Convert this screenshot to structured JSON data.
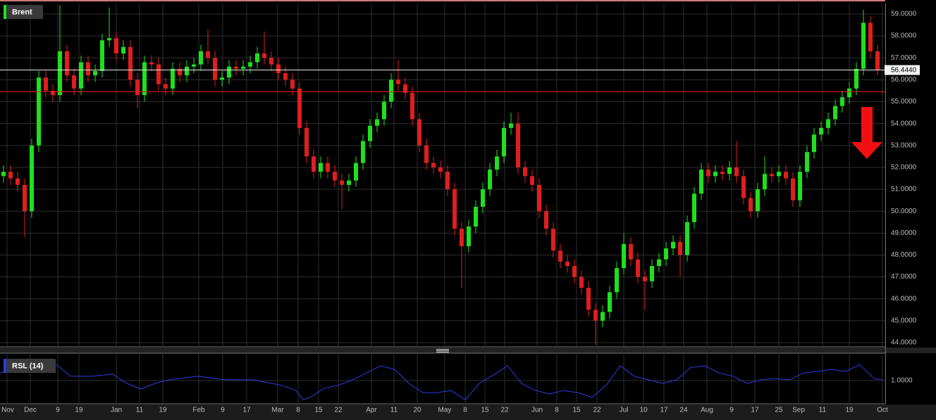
{
  "chart_data": [
    {
      "type": "candlestick",
      "title": "Brent",
      "up_color": "#1ee01e",
      "down_color": "#e01e1e",
      "open": [
        51.6,
        51.8,
        51.5,
        51.2,
        50.0,
        53.0,
        56.1,
        55.5,
        55.3,
        57.3,
        56.2,
        55.6,
        56.8,
        56.2,
        56.4,
        57.8,
        57.9,
        57.2,
        57.5,
        56.0,
        55.3,
        56.8,
        56.7,
        55.8,
        55.6,
        56.5,
        56.2,
        56.6,
        56.7,
        57.3,
        57.0,
        56.0,
        56.1,
        56.6,
        56.5,
        56.6,
        56.8,
        57.2,
        57.0,
        56.7,
        56.3,
        56.0,
        55.6,
        53.8,
        52.5,
        51.8,
        52.2,
        51.8,
        51.4,
        51.2,
        51.4,
        52.2,
        53.2,
        53.9,
        54.2,
        55.0,
        56.0,
        55.8,
        55.4,
        54.2,
        53.0,
        52.2,
        52.0,
        51.8,
        51.0,
        49.2,
        48.4,
        49.3,
        50.2,
        51.0,
        51.9,
        52.5,
        53.8,
        54.0,
        52.0,
        51.6,
        51.2,
        50.0,
        49.2,
        48.2,
        47.7,
        47.5,
        47.0,
        46.5,
        45.5,
        45.0,
        45.4,
        46.3,
        47.4,
        48.5,
        47.8,
        47.0,
        46.8,
        47.5,
        47.8,
        48.3,
        48.6,
        48.0,
        49.5,
        50.8,
        51.9,
        51.6,
        51.8,
        51.7,
        52.0,
        51.6,
        50.6,
        50.0,
        51.0,
        51.7,
        51.6,
        51.8,
        51.5,
        50.5,
        51.8,
        52.7,
        53.5,
        53.8,
        54.2,
        54.8,
        55.2,
        55.6,
        56.5,
        58.6,
        57.3
      ],
      "high": [
        52.1,
        52.1,
        51.8,
        51.5,
        53.3,
        56.4,
        56.4,
        55.8,
        59.4,
        57.6,
        56.5,
        57.1,
        57.1,
        56.7,
        58.1,
        59.3,
        58.2,
        57.8,
        57.8,
        56.3,
        57.1,
        57.1,
        57.0,
        56.1,
        56.8,
        56.8,
        56.9,
        57.0,
        57.6,
        58.3,
        57.3,
        56.4,
        56.9,
        56.9,
        56.9,
        57.1,
        57.5,
        58.2,
        57.3,
        57.0,
        56.6,
        56.3,
        55.9,
        54.1,
        52.8,
        52.5,
        52.5,
        52.1,
        51.7,
        51.7,
        52.5,
        53.5,
        54.2,
        54.5,
        55.3,
        56.3,
        56.9,
        56.1,
        55.7,
        54.5,
        53.3,
        52.5,
        52.3,
        52.1,
        51.3,
        49.5,
        49.6,
        50.5,
        51.3,
        52.2,
        52.8,
        54.1,
        54.5,
        54.5,
        52.3,
        51.9,
        51.5,
        50.3,
        49.5,
        48.5,
        48.0,
        47.8,
        47.3,
        46.8,
        45.8,
        45.7,
        46.6,
        47.7,
        49.0,
        48.8,
        48.1,
        47.3,
        47.8,
        48.1,
        48.6,
        48.9,
        48.9,
        49.8,
        51.1,
        52.2,
        52.2,
        52.1,
        52.1,
        52.3,
        53.2,
        51.9,
        50.9,
        51.3,
        52.5,
        52.0,
        52.1,
        52.1,
        51.8,
        52.1,
        53.0,
        53.8,
        54.1,
        54.5,
        55.1,
        55.5,
        55.9,
        56.8,
        59.2,
        58.9,
        57.6
      ],
      "low": [
        51.3,
        51.2,
        50.9,
        48.8,
        49.7,
        52.7,
        55.2,
        55.0,
        55.0,
        55.9,
        55.3,
        55.3,
        55.9,
        55.9,
        56.1,
        57.5,
        56.9,
        56.9,
        55.7,
        54.7,
        55.0,
        56.4,
        55.5,
        55.3,
        55.3,
        55.9,
        55.9,
        56.3,
        56.4,
        56.7,
        55.7,
        55.7,
        55.8,
        56.2,
        56.2,
        56.3,
        56.5,
        56.7,
        56.4,
        56.0,
        55.7,
        55.3,
        53.5,
        52.2,
        51.5,
        51.5,
        51.5,
        51.1,
        50.1,
        50.9,
        51.1,
        51.9,
        52.9,
        53.6,
        53.9,
        54.7,
        55.5,
        55.1,
        53.9,
        52.7,
        51.9,
        51.7,
        51.5,
        50.7,
        48.9,
        46.5,
        48.1,
        49.0,
        49.9,
        50.7,
        51.6,
        52.2,
        53.5,
        51.7,
        51.3,
        50.9,
        49.7,
        48.9,
        47.9,
        47.4,
        47.2,
        46.7,
        46.2,
        45.2,
        43.9,
        44.7,
        45.1,
        46.0,
        47.1,
        47.5,
        46.7,
        45.5,
        46.5,
        47.2,
        47.5,
        48.0,
        47.0,
        47.7,
        49.2,
        50.5,
        51.3,
        51.3,
        51.4,
        51.4,
        51.3,
        50.3,
        49.7,
        49.7,
        50.7,
        51.3,
        51.3,
        51.2,
        50.2,
        50.2,
        51.5,
        52.4,
        53.2,
        53.5,
        53.9,
        54.5,
        54.9,
        55.3,
        56.2,
        57.0,
        56.2
      ],
      "close": [
        51.8,
        51.5,
        51.2,
        50.0,
        53.0,
        56.1,
        55.5,
        55.3,
        57.3,
        56.2,
        55.6,
        56.8,
        56.2,
        56.4,
        57.8,
        57.9,
        57.2,
        57.5,
        56.0,
        55.3,
        56.8,
        56.7,
        55.8,
        55.6,
        56.5,
        56.2,
        56.6,
        56.7,
        57.3,
        57.0,
        56.0,
        56.1,
        56.6,
        56.5,
        56.6,
        56.8,
        57.2,
        57.0,
        56.7,
        56.3,
        56.0,
        55.6,
        53.8,
        52.5,
        51.8,
        52.2,
        51.8,
        51.4,
        51.2,
        51.4,
        52.2,
        53.2,
        53.9,
        54.2,
        55.0,
        56.0,
        55.8,
        55.4,
        54.2,
        53.0,
        52.2,
        52.0,
        51.8,
        51.0,
        49.2,
        48.4,
        49.3,
        50.2,
        51.0,
        51.9,
        52.5,
        53.8,
        54.0,
        52.0,
        51.6,
        51.2,
        50.0,
        49.2,
        48.2,
        47.7,
        47.5,
        47.0,
        46.5,
        45.5,
        45.0,
        45.4,
        46.3,
        47.4,
        48.5,
        47.8,
        47.0,
        46.8,
        47.5,
        47.8,
        48.3,
        48.6,
        48.0,
        49.5,
        50.8,
        51.9,
        51.6,
        51.8,
        51.7,
        52.0,
        51.6,
        50.6,
        50.0,
        51.0,
        51.7,
        51.6,
        51.8,
        51.5,
        50.5,
        51.8,
        52.7,
        53.5,
        53.8,
        54.2,
        54.8,
        55.2,
        55.6,
        56.5,
        58.6,
        57.3,
        56.44
      ],
      "ylim": [
        43.84,
        59.48
      ],
      "yticks": [
        {
          "value": 44,
          "label": "44.0000"
        },
        {
          "value": 45,
          "label": "45.0000"
        },
        {
          "value": 46,
          "label": "46.0000"
        },
        {
          "value": 47,
          "label": "47.0000"
        },
        {
          "value": 48,
          "label": "48.0000"
        },
        {
          "value": 49,
          "label": "49.0000"
        },
        {
          "value": 50,
          "label": "50.0000"
        },
        {
          "value": 51,
          "label": "51.0000"
        },
        {
          "value": 52,
          "label": "52.0000"
        },
        {
          "value": 53,
          "label": "53.0000"
        },
        {
          "value": 54,
          "label": "54.0000"
        },
        {
          "value": 55,
          "label": "55.0000"
        },
        {
          "value": 56,
          "label": "56.0000"
        },
        {
          "value": 57,
          "label": "57.0000"
        },
        {
          "value": 58,
          "label": "58.0000"
        },
        {
          "value": 59,
          "label": "59.0000"
        }
      ],
      "xlim": [
        0,
        125.6
      ],
      "xticks": [
        {
          "value": 1.0,
          "label": "Nov"
        },
        {
          "value": 4.3,
          "label": "Dec"
        },
        {
          "value": 8.2,
          "label": "9"
        },
        {
          "value": 11.2,
          "label": "19"
        },
        {
          "value": 16.5,
          "label": "Jan"
        },
        {
          "value": 19.8,
          "label": "11"
        },
        {
          "value": 23.1,
          "label": "19"
        },
        {
          "value": 28.2,
          "label": "Feb"
        },
        {
          "value": 31.6,
          "label": "9"
        },
        {
          "value": 35.0,
          "label": "17"
        },
        {
          "value": 39.4,
          "label": "Mar"
        },
        {
          "value": 42.3,
          "label": "8"
        },
        {
          "value": 45.2,
          "label": "15"
        },
        {
          "value": 48.0,
          "label": "22"
        },
        {
          "value": 52.7,
          "label": "Apr"
        },
        {
          "value": 55.9,
          "label": "11"
        },
        {
          "value": 59.2,
          "label": "20"
        },
        {
          "value": 63.1,
          "label": "May"
        },
        {
          "value": 66.0,
          "label": "8"
        },
        {
          "value": 68.8,
          "label": "15"
        },
        {
          "value": 71.6,
          "label": "22"
        },
        {
          "value": 76.2,
          "label": "Jun"
        },
        {
          "value": 79.0,
          "label": "8"
        },
        {
          "value": 81.8,
          "label": "15"
        },
        {
          "value": 84.7,
          "label": "22"
        },
        {
          "value": 88.5,
          "label": "Jul"
        },
        {
          "value": 91.3,
          "label": "10"
        },
        {
          "value": 94.2,
          "label": "17"
        },
        {
          "value": 97.0,
          "label": "24"
        },
        {
          "value": 100.3,
          "label": "Aug"
        },
        {
          "value": 103.8,
          "label": "9"
        },
        {
          "value": 107.1,
          "label": "17"
        },
        {
          "value": 110.5,
          "label": "25"
        },
        {
          "value": 113.3,
          "label": "Sep"
        },
        {
          "value": 116.7,
          "label": "11"
        },
        {
          "value": 120.5,
          "label": "19"
        },
        {
          "value": 125.2,
          "label": "Oct"
        }
      ],
      "reference_line": {
        "value": 55.45,
        "color": "#e01e1e"
      },
      "last_price": {
        "value": 56.444,
        "label": "56.4440"
      },
      "grid": true
    },
    {
      "type": "line",
      "title": "RSL (14)",
      "color": "#2b3de0",
      "x": [
        0,
        2,
        4,
        6,
        8,
        10,
        13,
        16,
        18,
        20,
        22,
        24,
        28,
        32,
        36,
        40,
        42,
        43,
        44,
        46,
        48,
        50,
        52,
        54,
        56,
        58,
        60,
        62,
        64,
        66,
        68,
        70,
        72,
        74,
        76,
        78,
        80,
        82,
        84,
        86,
        88,
        90,
        92,
        94,
        96,
        98,
        100,
        102,
        104,
        106,
        108,
        110,
        112,
        114,
        116,
        118,
        120,
        122,
        124,
        125.2
      ],
      "values": [
        1.019,
        1.028,
        1.055,
        1.019,
        1.04,
        1.011,
        1.011,
        1.016,
        0.993,
        0.979,
        0.993,
        1.002,
        1.011,
        1.002,
        1.002,
        0.988,
        0.975,
        0.952,
        0.958,
        0.981,
        0.988,
        1.002,
        1.019,
        1.037,
        1.028,
        0.993,
        0.97,
        0.97,
        0.975,
        0.952,
        0.993,
        1.014,
        1.037,
        0.993,
        0.975,
        0.967,
        0.975,
        0.97,
        0.958,
        0.988,
        1.037,
        1.011,
        1.002,
        0.993,
        1.002,
        1.033,
        1.037,
        1.019,
        1.011,
        0.993,
        1.002,
        1.005,
        1.002,
        1.019,
        1.023,
        1.028,
        1.023,
        1.04,
        1.005,
        1.002
      ],
      "xlim": [
        0,
        125.6
      ],
      "ylim": [
        0.9437,
        1.0687
      ],
      "yticks": [
        {
          "value": 1,
          "label": "1.0000"
        }
      ],
      "grid": true
    }
  ]
}
